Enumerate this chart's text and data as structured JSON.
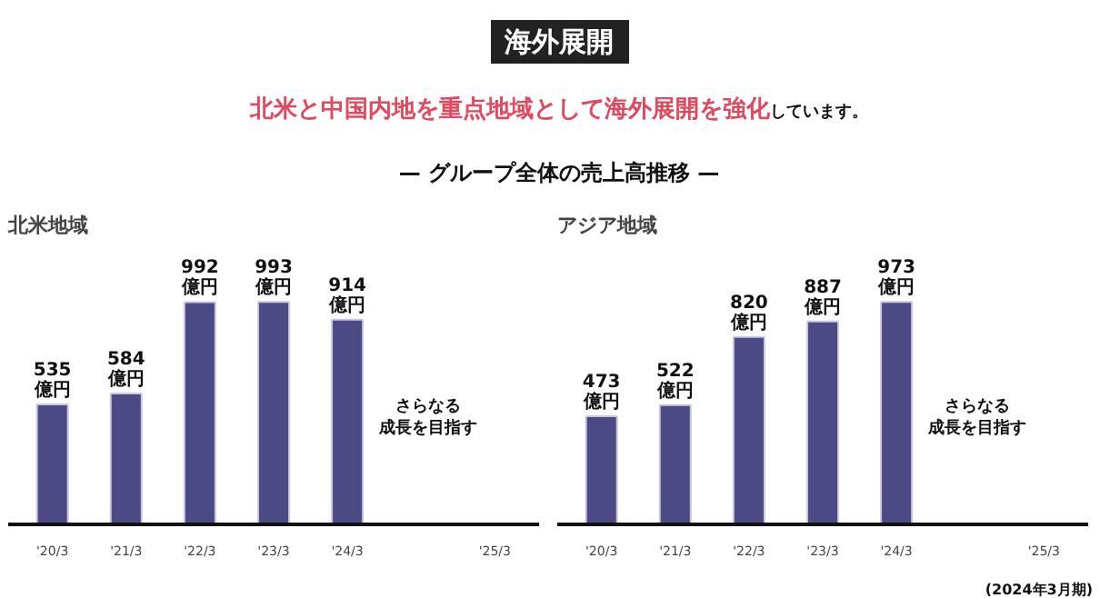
{
  "chart_data": [
    {
      "type": "bar",
      "title": "北米地域",
      "categories": [
        "'20/3",
        "'21/3",
        "'22/3",
        "'23/3",
        "'24/3",
        null,
        "'25/3"
      ],
      "values": [
        535,
        584,
        992,
        993,
        914,
        null,
        null
      ],
      "value_labels": [
        "535\n億円",
        "584\n億円",
        "992\n億円",
        "993\n億円",
        "914\n億円",
        null,
        null
      ],
      "color": "#4b4a85",
      "annotations": [
        "海外展開",
        "北米と中国内地を重点地域として海外展開を強化",
        "しています。",
        "— グループ全体の売上高推移 —",
        "さらなる",
        "成長を目指す"
      ]
    },
    {
      "type": "bar",
      "title": "アジア地域",
      "categories": [
        "'20/3",
        "'21/3",
        "'22/3",
        "'23/3",
        "'24/3",
        null,
        "'25/3"
      ],
      "values": [
        473,
        522,
        820,
        887,
        973,
        null,
        null
      ],
      "value_labels": [
        "473\n億円",
        "522\n億円",
        "820\n億円",
        "887\n億円",
        "973\n億円",
        null,
        null
      ],
      "color": "#4b4a85",
      "annotations": [
        "さらなる",
        "成長を目指す",
        "(2024年3月期)"
      ]
    }
  ]
}
